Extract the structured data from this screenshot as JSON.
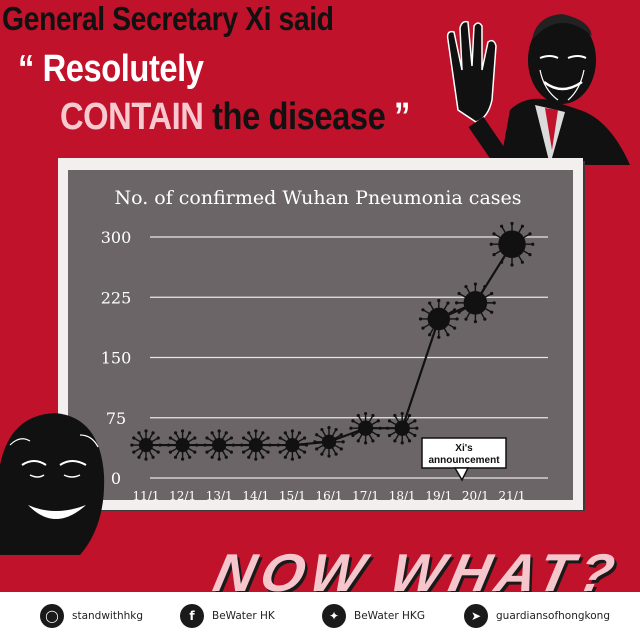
{
  "headline": {
    "line1": "General Secretary Xi said",
    "open_quote": "“",
    "line2": "Resolutely",
    "line3_pink": "CONTAIN",
    "line3_dark": "the disease",
    "close_quote": "”"
  },
  "chart_data": {
    "type": "line",
    "title": "No. of confirmed Wuhan Pneumonia cases",
    "categories": [
      "11/1",
      "12/1",
      "13/1",
      "14/1",
      "15/1",
      "16/1",
      "17/1",
      "18/1",
      "19/1",
      "20/1",
      "21/1"
    ],
    "values": [
      41,
      41,
      41,
      41,
      41,
      45,
      62,
      62,
      198,
      218,
      291
    ],
    "yticks": [
      0,
      75,
      150,
      225,
      300
    ],
    "ylim": [
      0,
      310
    ],
    "grid": true,
    "annotation": {
      "text": "Xi's announcement",
      "at_category": "20/1"
    }
  },
  "tagline": "NOW WHAT?",
  "footer": {
    "items": [
      {
        "icon": "instagram-icon",
        "label": "standwithhkg"
      },
      {
        "icon": "facebook-icon",
        "label": "BeWater HK"
      },
      {
        "icon": "twitter-icon",
        "label": "BeWater HKG"
      },
      {
        "icon": "telegram-icon",
        "label": "guardiansofhongkong"
      }
    ]
  },
  "colors": {
    "background": "#c0122b",
    "board": "#6b6567",
    "pink": "#f8c9cf",
    "ink": "#111111"
  }
}
